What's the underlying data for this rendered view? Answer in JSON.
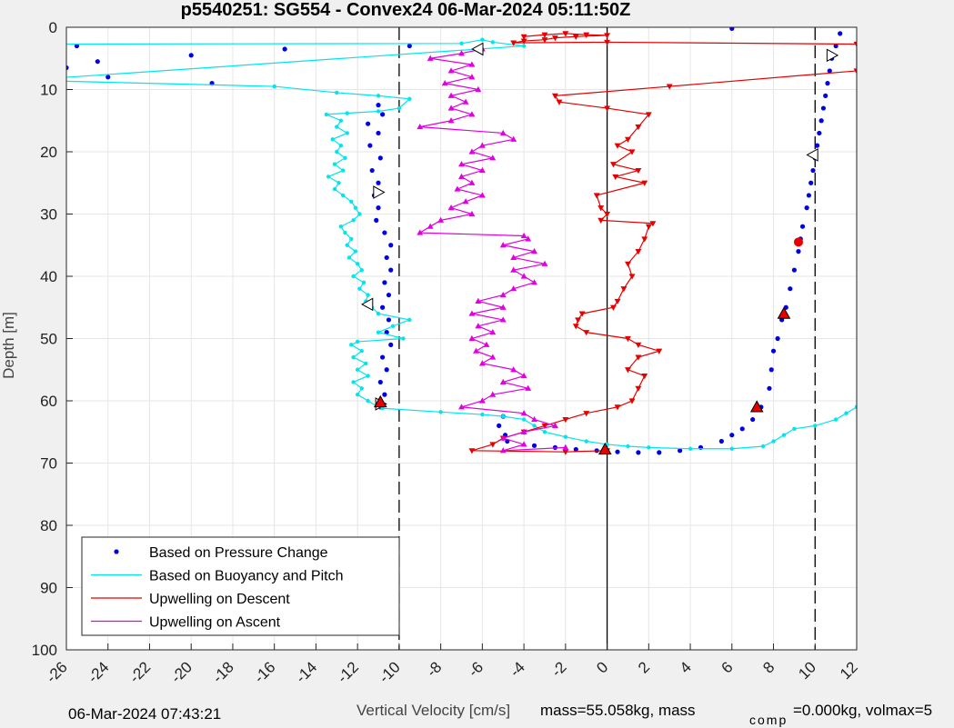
{
  "chart_data": {
    "type": "line",
    "title": "p5540251: SG554 - Convex24 06-Mar-2024 05:11:50Z",
    "xlabel": "Vertical Velocity [cm/s]",
    "ylabel": "Depth [m]",
    "xlim": [
      -26,
      12
    ],
    "ylim": [
      0,
      100
    ],
    "y_reversed": true,
    "grid": true,
    "x_ticks": [
      "-26",
      "-24",
      "-22",
      "-20",
      "-18",
      "-16",
      "-14",
      "-12",
      "-10",
      "-8",
      "-6",
      "-4",
      "-2",
      "0",
      "2",
      "4",
      "6",
      "8",
      "10",
      "12"
    ],
    "y_ticks": [
      "0",
      "10",
      "20",
      "30",
      "40",
      "50",
      "60",
      "70",
      "80",
      "90",
      "100"
    ],
    "vertical_lines": [
      {
        "x": -10,
        "style": "dashed"
      },
      {
        "x": 0,
        "style": "solid"
      },
      {
        "x": 10,
        "style": "dashed"
      }
    ],
    "legend_position": "bottom-left",
    "series": [
      {
        "name": "Based on Pressure Change",
        "color": "#0000e6",
        "style": "dots",
        "points": [
          [
            -26,
            6.5
          ],
          [
            -25.5,
            3
          ],
          [
            -24.5,
            5.5
          ],
          [
            -24,
            8
          ],
          [
            -20,
            4.5
          ],
          [
            -19,
            9
          ],
          [
            -15.5,
            3.5
          ],
          [
            -9.5,
            3
          ],
          [
            -11,
            12.5
          ],
          [
            -10.8,
            14
          ],
          [
            -11.5,
            15.5
          ],
          [
            -11,
            17
          ],
          [
            -11.4,
            19
          ],
          [
            -10.9,
            21
          ],
          [
            -11.3,
            23
          ],
          [
            -11,
            25
          ],
          [
            -11.2,
            27
          ],
          [
            -11,
            29
          ],
          [
            -11.1,
            31
          ],
          [
            -10.7,
            33
          ],
          [
            -10.4,
            35
          ],
          [
            -10.6,
            37
          ],
          [
            -10.4,
            39
          ],
          [
            -10.7,
            41
          ],
          [
            -10.5,
            43
          ],
          [
            -10.8,
            45
          ],
          [
            -10.5,
            47
          ],
          [
            -10.6,
            49
          ],
          [
            -10.4,
            51
          ],
          [
            -10.8,
            53
          ],
          [
            -10.6,
            55
          ],
          [
            -10.9,
            57
          ],
          [
            -10.7,
            59
          ],
          [
            -10.9,
            61
          ],
          [
            -5,
            62.5
          ],
          [
            -5.2,
            64
          ],
          [
            -4.9,
            65.5
          ],
          [
            -4.8,
            66.5
          ],
          [
            -3.5,
            67.2
          ],
          [
            -2.5,
            67.5
          ],
          [
            -1.5,
            67.8
          ],
          [
            -0.5,
            68
          ],
          [
            0,
            68
          ],
          [
            0.5,
            68.2
          ],
          [
            1.5,
            68.3
          ],
          [
            2.5,
            68.3
          ],
          [
            3.5,
            68
          ],
          [
            4.5,
            67.5
          ],
          [
            5.5,
            66.5
          ],
          [
            6,
            65.5
          ],
          [
            6.5,
            64.5
          ],
          [
            7,
            63
          ],
          [
            7.4,
            61
          ],
          [
            7.8,
            58
          ],
          [
            7.9,
            55
          ],
          [
            8,
            52
          ],
          [
            8.2,
            50
          ],
          [
            8.4,
            47
          ],
          [
            8.6,
            45
          ],
          [
            8.8,
            42
          ],
          [
            9,
            39
          ],
          [
            9.2,
            36
          ],
          [
            9.3,
            34
          ],
          [
            9.4,
            32
          ],
          [
            9.6,
            29
          ],
          [
            9.7,
            27
          ],
          [
            9.8,
            25
          ],
          [
            9.9,
            23
          ],
          [
            10,
            21
          ],
          [
            10.1,
            19
          ],
          [
            10.2,
            17
          ],
          [
            10.3,
            15
          ],
          [
            10.4,
            13
          ],
          [
            10.5,
            11
          ],
          [
            10.6,
            9
          ],
          [
            10.7,
            7
          ],
          [
            10.8,
            5
          ],
          [
            11,
            3
          ],
          [
            11.2,
            1
          ],
          [
            6,
            0.2
          ]
        ]
      },
      {
        "name": "Based on Buoyancy and Pitch",
        "color": "#00e5ee",
        "style": "line-dots",
        "points": [
          [
            -28,
            2.7
          ],
          [
            -7,
            2.6
          ],
          [
            -6,
            2
          ],
          [
            -5.5,
            2.4
          ],
          [
            -4,
            3
          ],
          [
            -28,
            8.5
          ],
          [
            -16,
            9.5
          ],
          [
            -13,
            10.5
          ],
          [
            -11,
            11
          ],
          [
            -9.5,
            11.5
          ],
          [
            -10,
            13
          ],
          [
            -11,
            13.5
          ],
          [
            -12.5,
            13.8
          ],
          [
            -13.5,
            14
          ],
          [
            -12.8,
            15
          ],
          [
            -13,
            16
          ],
          [
            -12.5,
            17
          ],
          [
            -13.2,
            18
          ],
          [
            -12.8,
            19
          ],
          [
            -13,
            20
          ],
          [
            -12.6,
            21
          ],
          [
            -13.1,
            22
          ],
          [
            -12.7,
            23
          ],
          [
            -13.4,
            24
          ],
          [
            -12.9,
            25
          ],
          [
            -13.1,
            26
          ],
          [
            -12.7,
            27
          ],
          [
            -12.3,
            28
          ],
          [
            -12.1,
            29
          ],
          [
            -11.9,
            30
          ],
          [
            -12.2,
            31
          ],
          [
            -12.8,
            32
          ],
          [
            -12.6,
            33
          ],
          [
            -12.3,
            34
          ],
          [
            -12.5,
            35
          ],
          [
            -12.1,
            36
          ],
          [
            -12.4,
            37
          ],
          [
            -12,
            38
          ],
          [
            -11.8,
            39
          ],
          [
            -12.2,
            40
          ],
          [
            -11.7,
            41
          ],
          [
            -11.9,
            42
          ],
          [
            -11.5,
            43
          ],
          [
            -11.6,
            44
          ],
          [
            -11.3,
            45
          ],
          [
            -11,
            46
          ],
          [
            -9.5,
            47
          ],
          [
            -10.3,
            48
          ],
          [
            -11,
            49
          ],
          [
            -9.8,
            50
          ],
          [
            -12,
            50.5
          ],
          [
            -12.3,
            51
          ],
          [
            -11.8,
            52
          ],
          [
            -12.2,
            53
          ],
          [
            -11.6,
            54
          ],
          [
            -12,
            55
          ],
          [
            -11.5,
            56
          ],
          [
            -12.2,
            57
          ],
          [
            -11.8,
            58
          ],
          [
            -12,
            59
          ],
          [
            -11.5,
            60
          ],
          [
            -11,
            61
          ],
          [
            -10.8,
            61.2
          ],
          [
            -8,
            61.8
          ],
          [
            -6,
            62.2
          ],
          [
            -5,
            62.5
          ],
          [
            -4,
            63
          ],
          [
            -3.5,
            64
          ],
          [
            -3,
            65
          ],
          [
            -2,
            65.8
          ],
          [
            -1,
            66.5
          ],
          [
            0,
            67
          ],
          [
            1,
            67.3
          ],
          [
            2,
            67.5
          ],
          [
            4,
            67.7
          ],
          [
            6,
            67.7
          ],
          [
            7.5,
            67.3
          ],
          [
            8,
            66.5
          ],
          [
            8.5,
            65.5
          ],
          [
            9,
            64.5
          ],
          [
            10,
            64
          ],
          [
            11,
            63
          ],
          [
            11.5,
            62
          ],
          [
            12,
            61
          ]
        ]
      },
      {
        "name": "Upwelling on Descent",
        "color": "#e60000",
        "style": "line-triangle-down",
        "points": [
          [
            -4,
            1.5
          ],
          [
            -3,
            1.2
          ],
          [
            -2,
            1
          ],
          [
            -1,
            1.2
          ],
          [
            0,
            1.3
          ],
          [
            -1.5,
            1.5
          ],
          [
            -2.5,
            1.7
          ],
          [
            -3,
            2
          ],
          [
            -4,
            2.2
          ],
          [
            -4.5,
            2.5
          ],
          [
            0,
            2.4
          ],
          [
            12,
            2.7
          ],
          [
            12,
            7
          ],
          [
            3,
            9.5
          ],
          [
            -2.5,
            11
          ],
          [
            -2.3,
            12
          ],
          [
            0,
            13
          ],
          [
            2,
            14
          ],
          [
            1.5,
            16
          ],
          [
            1,
            18
          ],
          [
            0.5,
            19
          ],
          [
            1.2,
            20
          ],
          [
            0.3,
            22
          ],
          [
            1.5,
            23
          ],
          [
            0.4,
            24
          ],
          [
            1.8,
            25
          ],
          [
            -0.5,
            27
          ],
          [
            -0.3,
            29
          ],
          [
            0,
            30
          ],
          [
            -0.3,
            31
          ],
          [
            2.2,
            31.5
          ],
          [
            2,
            32
          ],
          [
            1.8,
            34
          ],
          [
            1.5,
            36
          ],
          [
            1,
            38
          ],
          [
            1.2,
            40
          ],
          [
            0.8,
            42
          ],
          [
            0.5,
            44
          ],
          [
            0.3,
            45
          ],
          [
            -1.2,
            46
          ],
          [
            -1.4,
            47
          ],
          [
            -1.5,
            48
          ],
          [
            -1,
            49
          ],
          [
            1,
            50
          ],
          [
            1.5,
            51
          ],
          [
            2.5,
            52
          ],
          [
            1.5,
            53
          ],
          [
            1,
            55
          ],
          [
            1.8,
            56
          ],
          [
            1.5,
            58
          ],
          [
            1.2,
            60
          ],
          [
            0.5,
            61
          ],
          [
            -1,
            62
          ],
          [
            -2,
            63
          ],
          [
            -3,
            64
          ],
          [
            -4,
            65
          ],
          [
            -5,
            66
          ],
          [
            -5.5,
            67
          ],
          [
            -6.5,
            68
          ],
          [
            -2,
            68.2
          ],
          [
            0,
            68
          ]
        ]
      },
      {
        "name": "Upwelling on Ascent",
        "color": "#e000e0",
        "style": "line-triangle-up",
        "points": [
          [
            -6,
            3.5
          ],
          [
            -7,
            4.2
          ],
          [
            -8.5,
            5
          ],
          [
            -6.5,
            6
          ],
          [
            -7.5,
            7
          ],
          [
            -6.5,
            8
          ],
          [
            -7.8,
            9
          ],
          [
            -6.2,
            10
          ],
          [
            -7.5,
            11
          ],
          [
            -6.8,
            12
          ],
          [
            -7.5,
            13
          ],
          [
            -6.5,
            14
          ],
          [
            -7.5,
            15
          ],
          [
            -9,
            16
          ],
          [
            -5,
            17
          ],
          [
            -4.5,
            18
          ],
          [
            -6,
            19
          ],
          [
            -6.5,
            20
          ],
          [
            -5.5,
            21
          ],
          [
            -7,
            22
          ],
          [
            -6,
            23
          ],
          [
            -7,
            24
          ],
          [
            -6.5,
            25
          ],
          [
            -7.2,
            26
          ],
          [
            -6,
            27
          ],
          [
            -6.8,
            28
          ],
          [
            -7.5,
            29
          ],
          [
            -6.5,
            30
          ],
          [
            -8,
            31
          ],
          [
            -8.5,
            32
          ],
          [
            -9,
            33
          ],
          [
            -4,
            33.5
          ],
          [
            -3.8,
            34
          ],
          [
            -5,
            35
          ],
          [
            -3.5,
            36
          ],
          [
            -4.5,
            37
          ],
          [
            -3,
            38
          ],
          [
            -4.5,
            39
          ],
          [
            -4,
            40
          ],
          [
            -3.5,
            41
          ],
          [
            -4.5,
            42
          ],
          [
            -5,
            43
          ],
          [
            -6.2,
            44
          ],
          [
            -5,
            45
          ],
          [
            -6.5,
            46
          ],
          [
            -5,
            47
          ],
          [
            -6.2,
            48
          ],
          [
            -5.5,
            49
          ],
          [
            -6.5,
            50
          ],
          [
            -5.8,
            51
          ],
          [
            -6.3,
            52
          ],
          [
            -5.5,
            53
          ],
          [
            -6,
            54
          ],
          [
            -4.5,
            55
          ],
          [
            -4,
            56
          ],
          [
            -5,
            57
          ],
          [
            -3.8,
            58
          ],
          [
            -5.5,
            59
          ],
          [
            -6,
            60
          ],
          [
            -7,
            61
          ],
          [
            -4,
            62
          ],
          [
            -3.5,
            63
          ],
          [
            -2.5,
            64
          ],
          [
            -4,
            65
          ],
          [
            -5,
            66
          ],
          [
            -4,
            67
          ],
          [
            -5,
            68
          ],
          [
            -2,
            67.5
          ]
        ]
      }
    ],
    "markers": [
      {
        "type": "triangle-left",
        "x": -6.2,
        "y": 3.5,
        "fill": "#ffffff"
      },
      {
        "type": "triangle-right",
        "x": 10.8,
        "y": 4.5,
        "fill": "#ffffff"
      },
      {
        "type": "triangle-left",
        "x": 9.9,
        "y": 20.5,
        "fill": "#ffffff"
      },
      {
        "type": "triangle-right",
        "x": -11,
        "y": 26.5,
        "fill": "#ffffff"
      },
      {
        "type": "triangle-left",
        "x": -11.5,
        "y": 44.5,
        "fill": "#ffffff"
      },
      {
        "type": "triangle-right",
        "x": -10.9,
        "y": 60.5,
        "fill": "#ffffff"
      },
      {
        "type": "triangle-up",
        "x": -10.9,
        "y": 60.2,
        "fill": "#e60000"
      },
      {
        "type": "triangle-up",
        "x": 8.5,
        "y": 46,
        "fill": "#e60000"
      },
      {
        "type": "triangle-up",
        "x": 7.2,
        "y": 61,
        "fill": "#e60000"
      },
      {
        "type": "triangle-up",
        "x": -0.1,
        "y": 67.8,
        "fill": "#e60000"
      },
      {
        "type": "circle",
        "x": 9.2,
        "y": 34.5,
        "fill": "#e60000"
      }
    ]
  },
  "footer": {
    "timestamp": "06-Mar-2024 07:43:21",
    "mass_text": "mass=55.058kg, mass",
    "comp_sub": "comp",
    "volmax_text": "=0.000kg, volmax=5"
  }
}
